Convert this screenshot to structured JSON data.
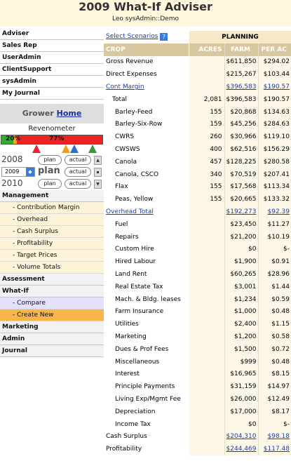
{
  "header": {
    "title": "2009 What-If Adviser",
    "subtitle": "Leo sysAdmin::Demo"
  },
  "sidebar": {
    "top_items": [
      {
        "label": "Adviser"
      },
      {
        "label": "Sales Rep"
      },
      {
        "label": "UserAdmin"
      },
      {
        "label": "ClientSupport"
      },
      {
        "label": "sysAdmin"
      },
      {
        "label": "My Journal"
      }
    ],
    "grower": {
      "label": "Grower",
      "link": "Home"
    },
    "revenometer": {
      "label": "Revenometer",
      "green_pct": "20%",
      "orange_pct": "77%",
      "green_value": 0.2,
      "orange_value": 0.77
    },
    "years": [
      {
        "year": "2008",
        "plan": "plan",
        "actual": "actual"
      },
      {
        "year": "2009",
        "plan": "plan",
        "actual": "actual"
      },
      {
        "year": "2010",
        "plan": "plan",
        "actual": "actual"
      }
    ],
    "menu": [
      {
        "label": "Management",
        "level": 1
      },
      {
        "label": "- Contribution Margin",
        "level": 2
      },
      {
        "label": "- Overhead",
        "level": 2
      },
      {
        "label": "- Cash Surplus",
        "level": 2
      },
      {
        "label": "- Profitability",
        "level": 2
      },
      {
        "label": "- Target Prices",
        "level": 2
      },
      {
        "label": "- Volume Totals",
        "level": 2
      },
      {
        "label": "Assessment",
        "level": 1
      },
      {
        "label": "What-If",
        "level": 1
      },
      {
        "label": "- Compare",
        "level": 2,
        "style": "pur"
      },
      {
        "label": "- Create New",
        "level": 2,
        "style": "sel"
      },
      {
        "label": "Marketing",
        "level": 1
      },
      {
        "label": "Admin",
        "level": 1
      },
      {
        "label": "Journal",
        "level": 1
      }
    ]
  },
  "main": {
    "select_scenarios": "Select Scenarios",
    "help": "?",
    "planning": "PLANNING",
    "columns": {
      "crop": "CROP",
      "acres": "ACRES",
      "farm": "FARM",
      "per_ac": "PER AC"
    },
    "rows": [
      {
        "label": "Gross Revenue",
        "acres": "",
        "farm": "$611,850",
        "per_ac": "$294.02",
        "indent": 0
      },
      {
        "label": "Direct Expenses",
        "acres": "",
        "farm": "$215,267",
        "per_ac": "$103.44",
        "indent": 0
      },
      {
        "label": "Cont Margin",
        "acres": "",
        "farm": "$396,583",
        "per_ac": "$190.57",
        "indent": 0,
        "link": true
      },
      {
        "label": "Total",
        "acres": "2,081",
        "farm": "$396,583",
        "per_ac": "$190.57",
        "indent": 1
      },
      {
        "label": "Barley-Feed",
        "acres": "155",
        "farm": "$20,868",
        "per_ac": "$134.63",
        "indent": 2
      },
      {
        "label": "Barley-Six-Row",
        "acres": "159",
        "farm": "$45,256",
        "per_ac": "$284.63",
        "indent": 2
      },
      {
        "label": "CWRS",
        "acres": "260",
        "farm": "$30,966",
        "per_ac": "$119.10",
        "indent": 2
      },
      {
        "label": "CWSWS",
        "acres": "400",
        "farm": "$62,516",
        "per_ac": "$156.29",
        "indent": 2
      },
      {
        "label": "Canola",
        "acres": "457",
        "farm": "$128,225",
        "per_ac": "$280.58",
        "indent": 2
      },
      {
        "label": "Canola, CSCO",
        "acres": "340",
        "farm": "$70,519",
        "per_ac": "$207.41",
        "indent": 2
      },
      {
        "label": "Flax",
        "acres": "155",
        "farm": "$17,568",
        "per_ac": "$113.34",
        "indent": 2
      },
      {
        "label": "Peas, Yellow",
        "acres": "155",
        "farm": "$20,665",
        "per_ac": "$133.32",
        "indent": 2
      },
      {
        "label": "Overhead Total",
        "acres": "",
        "farm": "$192,273",
        "per_ac": "$92.39",
        "indent": 0,
        "link": true
      },
      {
        "label": "Fuel",
        "acres": "",
        "farm": "$23,450",
        "per_ac": "$11.27",
        "indent": 2
      },
      {
        "label": "Repairs",
        "acres": "",
        "farm": "$21,200",
        "per_ac": "$10.19",
        "indent": 2
      },
      {
        "label": "Custom Hire",
        "acres": "",
        "farm": "$0",
        "per_ac": "$-",
        "indent": 2
      },
      {
        "label": "Hired Labour",
        "acres": "",
        "farm": "$1,900",
        "per_ac": "$0.91",
        "indent": 2
      },
      {
        "label": "Land Rent",
        "acres": "",
        "farm": "$60,265",
        "per_ac": "$28.96",
        "indent": 2
      },
      {
        "label": "Real Estate Tax",
        "acres": "",
        "farm": "$3,001",
        "per_ac": "$1.44",
        "indent": 2
      },
      {
        "label": "Mach. & Bldg. leases",
        "acres": "",
        "farm": "$1,234",
        "per_ac": "$0.59",
        "indent": 2
      },
      {
        "label": "Farm Insurance",
        "acres": "",
        "farm": "$1,000",
        "per_ac": "$0.48",
        "indent": 2
      },
      {
        "label": "Utilities",
        "acres": "",
        "farm": "$2,400",
        "per_ac": "$1.15",
        "indent": 2
      },
      {
        "label": "Marketing",
        "acres": "",
        "farm": "$1,200",
        "per_ac": "$0.58",
        "indent": 2
      },
      {
        "label": "Dues & Prof Fees",
        "acres": "",
        "farm": "$1,500",
        "per_ac": "$0.72",
        "indent": 2
      },
      {
        "label": "Miscellaneous",
        "acres": "",
        "farm": "$999",
        "per_ac": "$0.48",
        "indent": 2
      },
      {
        "label": "Interest",
        "acres": "",
        "farm": "$16,965",
        "per_ac": "$8.15",
        "indent": 2
      },
      {
        "label": "Principle Payments",
        "acres": "",
        "farm": "$31,159",
        "per_ac": "$14.97",
        "indent": 2
      },
      {
        "label": "Living Exp/Mgmt Fee",
        "acres": "",
        "farm": "$26,000",
        "per_ac": "$12.49",
        "indent": 2
      },
      {
        "label": "Depreciation",
        "acres": "",
        "farm": "$17,000",
        "per_ac": "$8.17",
        "indent": 2
      },
      {
        "label": "Income Tax",
        "acres": "",
        "farm": "$0",
        "per_ac": "$-",
        "indent": 2
      },
      {
        "label": "Cash Surplus",
        "acres": "",
        "farm": "$204,310",
        "per_ac": "$98.18",
        "indent": 0,
        "link_values": true
      },
      {
        "label": "Profitability",
        "acres": "",
        "farm": "$244,469",
        "per_ac": "$117.48",
        "indent": 0,
        "link_values": true
      }
    ]
  }
}
